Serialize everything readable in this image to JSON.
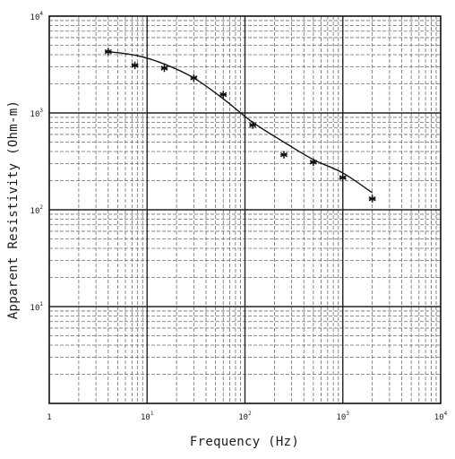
{
  "chart_data": {
    "type": "scatter",
    "x_scale": "log",
    "y_scale": "log",
    "xlim": [
      1,
      10000
    ],
    "ylim": [
      1,
      10000
    ],
    "xlabel": "Frequency  (Hz)",
    "ylabel": "Apparent Resistivity (Ohm-m)",
    "grid": true,
    "x_ticks": [
      {
        "value": 1,
        "base": "1",
        "exp": ""
      },
      {
        "value": 10,
        "base": "10",
        "exp": "1"
      },
      {
        "value": 100,
        "base": "10",
        "exp": "2"
      },
      {
        "value": 1000,
        "base": "10",
        "exp": "3"
      },
      {
        "value": 10000,
        "base": "10",
        "exp": "4"
      }
    ],
    "y_ticks": [
      {
        "value": 10,
        "base": "10",
        "exp": "1"
      },
      {
        "value": 100,
        "base": "10",
        "exp": "2"
      },
      {
        "value": 1000,
        "base": "10",
        "exp": "3"
      },
      {
        "value": 10000,
        "base": "10",
        "exp": "4"
      }
    ],
    "series": [
      {
        "marker": "asterisk",
        "x": [
          4,
          7.5,
          15,
          30,
          60,
          120,
          250,
          500,
          1000,
          2000
        ],
        "y": [
          4300,
          3100,
          2900,
          2300,
          1550,
          750,
          370,
          310,
          215,
          130
        ]
      },
      {
        "marker": "none",
        "line": "smooth",
        "x": [
          4,
          8,
          15,
          30,
          60,
          120,
          250,
          500,
          1000,
          2000
        ],
        "y": [
          4300,
          3900,
          3200,
          2300,
          1400,
          800,
          500,
          330,
          240,
          150
        ]
      }
    ]
  }
}
